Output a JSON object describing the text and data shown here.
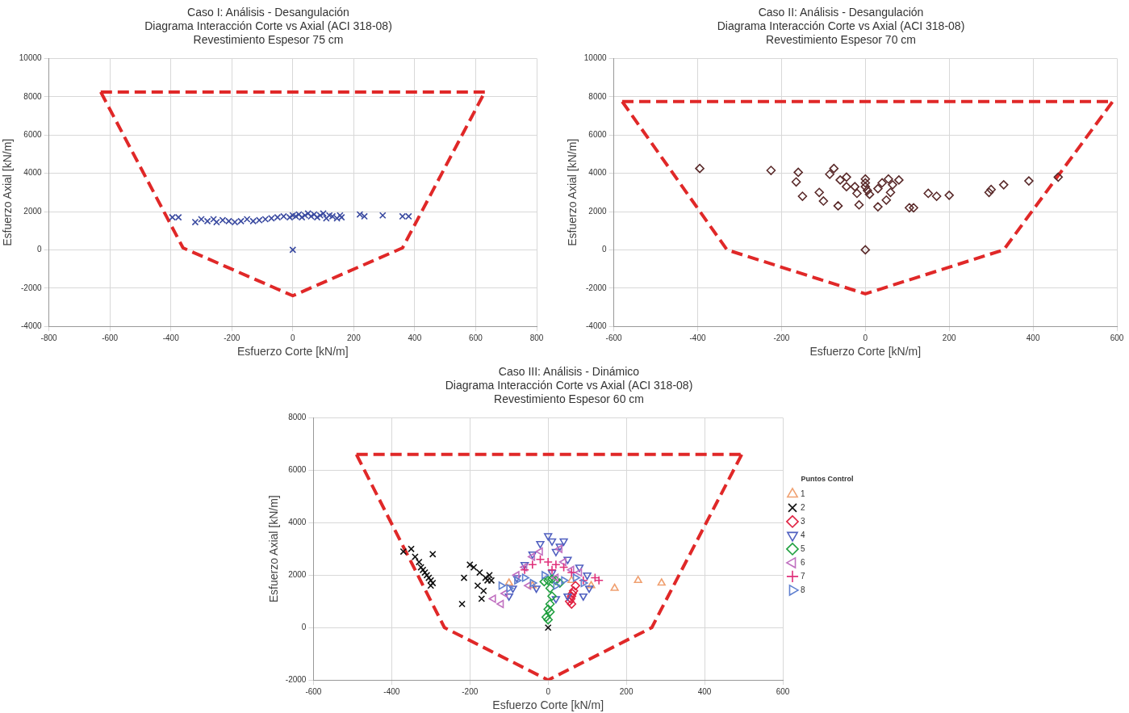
{
  "chart_data": [
    {
      "type": "scatter",
      "title": "Caso I: Análisis - Desangulación",
      "subtitle": "Diagrama Interacción Corte vs Axial (ACI 318-08)\nRevestimiento Espesor 75 cm",
      "xlabel": "Esfuerzo Corte [kN/m]",
      "ylabel": "Esfuerzo Axial [kN/m]",
      "xlim": [
        -800,
        800
      ],
      "xticks": [
        -800,
        -600,
        -400,
        -200,
        0,
        200,
        400,
        600,
        800
      ],
      "ylim": [
        -4000,
        10000
      ],
      "yticks": [
        -4000,
        -2000,
        0,
        2000,
        4000,
        6000,
        8000,
        10000
      ],
      "grid": true,
      "series": [
        {
          "type": "line",
          "color": "#e02828",
          "line_style": "dashed",
          "marker": "none",
          "x": [
            -630,
            630
          ],
          "values": [
            8250,
            8250
          ]
        },
        {
          "type": "line",
          "color": "#e02828",
          "line_style": "dashed",
          "marker": "none",
          "x": [
            -630,
            -360,
            0,
            360,
            630
          ],
          "values": [
            8250,
            100,
            -2400,
            100,
            8250
          ]
        },
        {
          "color": "#3a4aa0",
          "marker": "cross",
          "x": [
            -395,
            -375,
            -320,
            -300,
            -280,
            -260,
            -250,
            -230,
            -210,
            -190,
            -170,
            -150,
            -130,
            -110,
            -90,
            -70,
            -50,
            -30,
            -10,
            0,
            10,
            20,
            30,
            40,
            50,
            60,
            70,
            80,
            90,
            100,
            110,
            120,
            130,
            145,
            155,
            160,
            220,
            235,
            295,
            360,
            380,
            0
          ],
          "values": [
            1700,
            1700,
            1450,
            1600,
            1500,
            1600,
            1450,
            1550,
            1500,
            1450,
            1500,
            1600,
            1500,
            1550,
            1600,
            1650,
            1700,
            1750,
            1700,
            1800,
            1750,
            1850,
            1700,
            1800,
            1900,
            1750,
            1850,
            1700,
            1800,
            1900,
            1650,
            1800,
            1750,
            1650,
            1800,
            1700,
            1850,
            1750,
            1800,
            1750,
            1750,
            0
          ]
        }
      ]
    },
    {
      "type": "scatter",
      "title": "Caso II: Análisis - Desangulación",
      "subtitle": "Diagrama Interacción Corte vs Axial (ACI 318-08)\nRevestimiento Espesor 70 cm",
      "xlabel": "Esfuerzo Corte [kN/m]",
      "ylabel": "Esfuerzo Axial [kN/m]",
      "xlim": [
        -600,
        600
      ],
      "xticks": [
        -600,
        -400,
        -200,
        0,
        200,
        400,
        600
      ],
      "ylim": [
        -4000,
        10000
      ],
      "yticks": [
        -4000,
        -2000,
        0,
        2000,
        4000,
        6000,
        8000,
        10000
      ],
      "grid": true,
      "series": [
        {
          "type": "line",
          "color": "#e02828",
          "line_style": "dashed",
          "marker": "none",
          "x": [
            -580,
            590
          ],
          "values": [
            7750,
            7750
          ]
        },
        {
          "type": "line",
          "color": "#e02828",
          "line_style": "dashed",
          "marker": "none",
          "x": [
            -580,
            -330,
            0,
            330,
            590
          ],
          "values": [
            7750,
            0,
            -2300,
            0,
            7750
          ]
        },
        {
          "color": "#5a2a2a",
          "marker": "diamond",
          "x": [
            -395,
            -225,
            -160,
            -165,
            -150,
            -110,
            -100,
            -75,
            -85,
            -65,
            -60,
            -45,
            -45,
            -25,
            -20,
            -15,
            0,
            0,
            0,
            5,
            10,
            30,
            30,
            40,
            50,
            55,
            60,
            65,
            80,
            105,
            115,
            150,
            170,
            200,
            295,
            300,
            330,
            390,
            460,
            0
          ],
          "values": [
            4250,
            4150,
            4050,
            3550,
            2800,
            3000,
            2550,
            4250,
            3950,
            2300,
            3650,
            3800,
            3300,
            3300,
            2950,
            2350,
            3700,
            3500,
            3300,
            3100,
            2900,
            3200,
            2250,
            3500,
            2600,
            3700,
            3000,
            3400,
            3650,
            2200,
            2200,
            2950,
            2800,
            2850,
            3000,
            3150,
            3400,
            3600,
            3800,
            0
          ]
        }
      ]
    },
    {
      "type": "scatter",
      "title": "Caso III: Análisis - Dinámico",
      "subtitle": "Diagrama Interacción Corte vs Axial (ACI 318-08)\nRevestimiento Espesor 60 cm",
      "xlabel": "Esfuerzo Corte [kN/m]",
      "ylabel": "Esfuerzo Axial [kN/m]",
      "xlim": [
        -600,
        600
      ],
      "xticks": [
        -600,
        -400,
        -200,
        0,
        200,
        400,
        600
      ],
      "ylim": [
        -2000,
        8000
      ],
      "yticks": [
        -2000,
        0,
        2000,
        4000,
        6000,
        8000
      ],
      "grid": true,
      "legend": "right",
      "legend_title": "Puntos Control",
      "series": [
        {
          "type": "line",
          "color": "#e02828",
          "line_style": "dashed",
          "marker": "none",
          "x": [
            -490,
            495
          ],
          "values": [
            6600,
            6600
          ]
        },
        {
          "type": "line",
          "color": "#e02828",
          "line_style": "dashed",
          "marker": "none",
          "x": [
            -490,
            -265,
            0,
            265,
            495
          ],
          "values": [
            6600,
            0,
            -2000,
            0,
            6600
          ]
        },
        {
          "name": "1",
          "color": "#f0a070",
          "marker": "triangle",
          "x": [
            170,
            230,
            290,
            -100,
            -40,
            60,
            110
          ],
          "values": [
            1500,
            1800,
            1700,
            1700,
            1600,
            1800,
            1600
          ]
        },
        {
          "name": "2",
          "color": "#111111",
          "marker": "cross",
          "x": [
            -370,
            -350,
            -340,
            -330,
            -325,
            -320,
            -315,
            -310,
            -305,
            -300,
            -300,
            -295,
            -295,
            -220,
            -215,
            -200,
            -190,
            -180,
            -175,
            -170,
            -165,
            -160,
            -155,
            -150,
            -145,
            0
          ],
          "values": [
            2900,
            3000,
            2700,
            2500,
            2300,
            2200,
            2100,
            2000,
            1900,
            1800,
            1600,
            2800,
            1700,
            900,
            1900,
            2400,
            2300,
            1600,
            2100,
            1100,
            1400,
            1900,
            1800,
            2000,
            1800,
            0
          ]
        },
        {
          "name": "3",
          "color": "#e02040",
          "marker": "diamond",
          "x": [
            55,
            58,
            60,
            62,
            65,
            60,
            70
          ],
          "values": [
            1000,
            1100,
            1200,
            1300,
            1400,
            900,
            1600
          ]
        },
        {
          "name": "4",
          "color": "#5060c0",
          "marker": "triangle-down",
          "x": [
            -40,
            -20,
            0,
            10,
            20,
            30,
            40,
            -60,
            -80,
            -90,
            -100,
            50,
            80,
            100,
            105,
            90,
            50,
            20,
            -30,
            10
          ],
          "values": [
            2800,
            3200,
            3500,
            3300,
            2900,
            3100,
            3300,
            2400,
            1900,
            1500,
            1200,
            2600,
            2300,
            2000,
            1500,
            1200,
            1200,
            1100,
            1500,
            2100
          ]
        },
        {
          "name": "5",
          "color": "#20a040",
          "marker": "diamond",
          "x": [
            0,
            10,
            20,
            -10,
            30,
            5,
            10,
            5,
            0,
            -5,
            0,
            5
          ],
          "values": [
            1800,
            1850,
            1800,
            1750,
            1700,
            1500,
            1200,
            900,
            700,
            400,
            300,
            600
          ]
        },
        {
          "name": "6",
          "color": "#c070c0",
          "marker": "triangle-left",
          "x": [
            -140,
            -120,
            -110,
            -80,
            -60,
            -40,
            -20,
            30,
            40,
            60,
            80,
            -50,
            20
          ],
          "values": [
            1100,
            900,
            1300,
            2000,
            2300,
            2700,
            2900,
            3000,
            2500,
            2200,
            2100,
            1600,
            1900
          ]
        },
        {
          "name": "7",
          "color": "#e0307a",
          "marker": "plus",
          "x": [
            -40,
            -20,
            0,
            20,
            40,
            60,
            90,
            120,
            130,
            -60,
            10
          ],
          "values": [
            2400,
            2600,
            2500,
            2400,
            2300,
            2100,
            1800,
            1900,
            1800,
            2200,
            2200
          ]
        },
        {
          "name": "8",
          "color": "#6080d0",
          "marker": "triangle-right",
          "x": [
            -120,
            -100,
            -80,
            -60,
            -40,
            20,
            40,
            70,
            90,
            -10
          ],
          "values": [
            1600,
            1500,
            1800,
            1900,
            1700,
            1600,
            1800,
            1900,
            1700,
            2000
          ]
        }
      ]
    }
  ]
}
